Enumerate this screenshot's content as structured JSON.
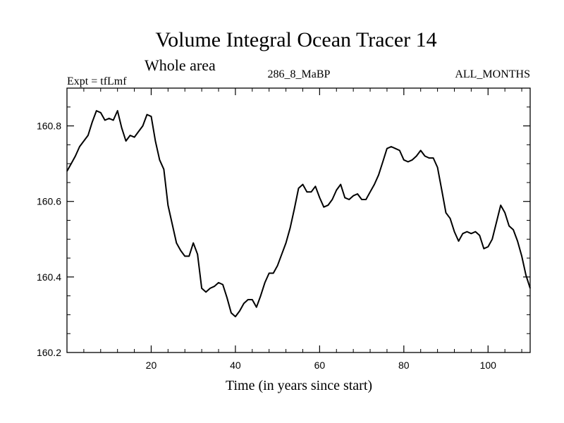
{
  "chart_data": {
    "type": "line",
    "title": "Volume Integral Ocean Tracer 14",
    "subtitle": "Whole area",
    "left_label": "Expt = tfLmf",
    "center_label": "286_8_MaBP",
    "right_label": "ALL_MONTHS",
    "xlabel": "Time (in years since start)",
    "ylabel": "",
    "xlim": [
      0,
      110
    ],
    "ylim": [
      160.2,
      160.9
    ],
    "x_ticks": [
      20,
      40,
      60,
      80,
      100
    ],
    "y_ticks": [
      160.2,
      160.4,
      160.6,
      160.8
    ],
    "x_tick_labels": [
      "20",
      "40",
      "60",
      "80",
      "100"
    ],
    "y_tick_labels": [
      "160.2",
      "160.4",
      "160.6",
      "160.8"
    ],
    "grid": false,
    "series": [
      {
        "color": "#000000",
        "x": [
          0,
          1,
          2,
          3,
          4,
          5,
          6,
          7,
          8,
          9,
          10,
          11,
          12,
          13,
          14,
          15,
          16,
          17,
          18,
          19,
          20,
          21,
          22,
          23,
          24,
          25,
          26,
          27,
          28,
          29,
          30,
          31,
          32,
          33,
          34,
          35,
          36,
          37,
          38,
          39,
          40,
          41,
          42,
          43,
          44,
          45,
          46,
          47,
          48,
          49,
          50,
          51,
          52,
          53,
          54,
          55,
          56,
          57,
          58,
          59,
          60,
          61,
          62,
          63,
          64,
          65,
          66,
          67,
          68,
          69,
          70,
          71,
          72,
          73,
          74,
          75,
          76,
          77,
          78,
          79,
          80,
          81,
          82,
          83,
          84,
          85,
          86,
          87,
          88,
          89,
          90,
          91,
          92,
          93,
          94,
          95,
          96,
          97,
          98,
          99,
          100,
          101,
          102,
          103,
          104,
          105,
          106,
          107,
          108,
          109,
          110
        ],
        "y": [
          160.68,
          160.7,
          160.72,
          160.745,
          160.76,
          160.775,
          160.81,
          160.84,
          160.835,
          160.815,
          160.82,
          160.815,
          160.84,
          160.795,
          160.76,
          160.775,
          160.77,
          160.785,
          160.8,
          160.83,
          160.825,
          160.76,
          160.71,
          160.685,
          160.59,
          160.54,
          160.49,
          160.47,
          160.455,
          160.455,
          160.49,
          160.46,
          160.37,
          160.36,
          160.37,
          160.375,
          160.385,
          160.38,
          160.345,
          160.305,
          160.295,
          160.31,
          160.33,
          160.34,
          160.34,
          160.32,
          160.35,
          160.385,
          160.41,
          160.41,
          160.43,
          160.46,
          160.49,
          160.53,
          160.58,
          160.635,
          160.645,
          160.625,
          160.625,
          160.64,
          160.61,
          160.585,
          160.59,
          160.605,
          160.63,
          160.645,
          160.61,
          160.605,
          160.615,
          160.62,
          160.605,
          160.605,
          160.625,
          160.645,
          160.67,
          160.705,
          160.74,
          160.745,
          160.74,
          160.735,
          160.71,
          160.705,
          160.71,
          160.72,
          160.735,
          160.72,
          160.715,
          160.715,
          160.69,
          160.63,
          160.57,
          160.555,
          160.52,
          160.495,
          160.515,
          160.52,
          160.515,
          160.52,
          160.51,
          160.475,
          160.48,
          160.5,
          160.545,
          160.59,
          160.57,
          160.535,
          160.525,
          160.495,
          160.455,
          160.405,
          160.37
        ]
      }
    ]
  }
}
